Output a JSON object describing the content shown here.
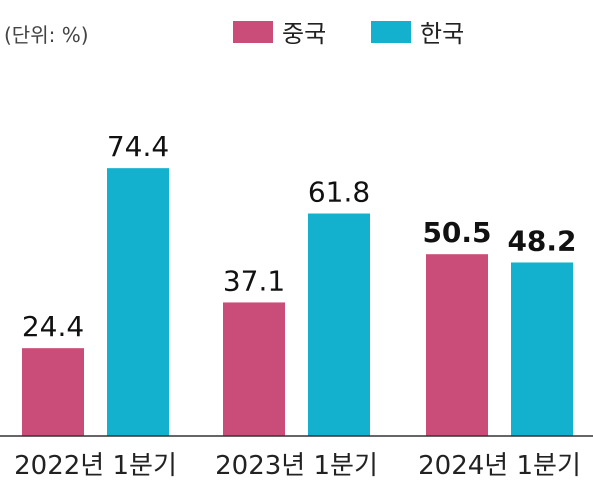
{
  "unit_label": "(단위: %)",
  "colors": {
    "china": "#c94d78",
    "korea": "#14b1cf",
    "axis": "#333333"
  },
  "chart_data": {
    "type": "bar",
    "categories": [
      "2022년 1분기",
      "2023년 1분기",
      "2024년 1분기"
    ],
    "series": [
      {
        "name": "중국",
        "values": [
          24.4,
          37.1,
          50.5
        ]
      },
      {
        "name": "한국",
        "values": [
          74.4,
          61.8,
          48.2
        ]
      }
    ],
    "data_labels": [
      [
        "24.4",
        "37.1",
        "50.5"
      ],
      [
        "74.4",
        "61.8",
        "48.2"
      ]
    ],
    "bold_labels_category_index": 2,
    "ylim": [
      0,
      100
    ],
    "grid": false,
    "legend_position": "top-center"
  }
}
